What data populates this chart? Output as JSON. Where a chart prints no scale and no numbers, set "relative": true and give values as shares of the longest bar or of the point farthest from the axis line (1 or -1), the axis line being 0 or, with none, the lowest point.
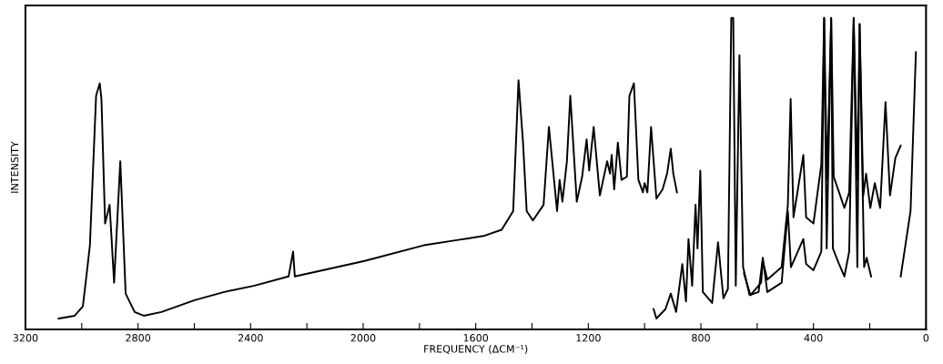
{
  "chart_data": {
    "type": "line",
    "relative": true,
    "xlabel": "FREQUENCY (ΔCM⁻¹)",
    "ylabel": "INTENSITY",
    "xlim": [
      3200,
      0
    ],
    "xticks": [
      3200,
      {
        "value": 3000,
        "label": null
      },
      2800,
      {
        "value": 2600,
        "label": null
      },
      2400,
      {
        "value": 2200,
        "label": null
      },
      2000,
      {
        "value": 1800,
        "label": null
      },
      1600,
      {
        "value": 1400,
        "label": null
      },
      1200,
      {
        "value": 1000,
        "label": null
      },
      800,
      {
        "value": 600,
        "label": null
      },
      400,
      {
        "value": 200,
        "label": null
      },
      0
    ],
    "grid": false,
    "legend": false,
    "line_style": "solid",
    "marker": "none",
    "series": [
      {
        "color": "#000000",
        "x": [
          3082,
          3025,
          2996,
          2981,
          2971,
          2949,
          2936,
          2930,
          2917,
          2901,
          2885,
          2863,
          2844,
          2812,
          2780,
          2717,
          2599,
          2494,
          2389,
          2265,
          2249,
          2243,
          2144,
          1995,
          1785,
          1572,
          1508,
          1467,
          1448,
          1432,
          1419,
          1397,
          1359,
          1340,
          1311,
          1302,
          1292,
          1276,
          1264,
          1241,
          1222,
          1206,
          1197,
          1181,
          1159,
          1133,
          1123,
          1117,
          1108,
          1095,
          1082,
          1063,
          1054,
          1038,
          1022,
          1006,
          1000,
          990,
          977,
          958,
          936,
          920,
          907,
          898,
          885
        ],
        "values": [
          0.035,
          0.044,
          0.074,
          0.19,
          0.27,
          0.75,
          0.79,
          0.74,
          0.34,
          0.4,
          0.15,
          0.54,
          0.115,
          0.056,
          0.044,
          0.056,
          0.094,
          0.12,
          0.14,
          0.17,
          0.25,
          0.17,
          0.19,
          0.22,
          0.27,
          0.3,
          0.32,
          0.38,
          0.8,
          0.6,
          0.38,
          0.35,
          0.4,
          0.65,
          0.38,
          0.48,
          0.41,
          0.54,
          0.75,
          0.41,
          0.49,
          0.61,
          0.51,
          0.65,
          0.43,
          0.54,
          0.5,
          0.56,
          0.45,
          0.6,
          0.48,
          0.49,
          0.75,
          0.79,
          0.48,
          0.44,
          0.47,
          0.44,
          0.65,
          0.42,
          0.45,
          0.5,
          0.58,
          0.5,
          0.44
        ]
      },
      {
        "color": "#000000",
        "x": [
          968,
          958,
          926,
          907,
          888,
          866,
          853,
          844,
          831,
          819,
          812,
          802,
          793,
          760,
          739,
          720,
          704,
          692,
          685,
          676,
          663,
          650,
          627,
          595,
          580,
          564,
          513,
          491,
          480,
          436,
          426,
          400,
          372,
          362,
          353,
          337,
          331,
          309,
          290,
          273,
          257,
          244,
          236,
          220,
          211,
          195
        ],
        "values": [
          0.065,
          0.035,
          0.065,
          0.115,
          0.056,
          0.21,
          0.09,
          0.29,
          0.14,
          0.4,
          0.26,
          0.51,
          0.12,
          0.085,
          0.28,
          0.1,
          0.13,
          1.0,
          1.0,
          0.14,
          0.88,
          0.2,
          0.11,
          0.12,
          0.23,
          0.12,
          0.15,
          0.38,
          0.2,
          0.29,
          0.21,
          0.19,
          0.25,
          1.0,
          0.26,
          1.0,
          0.26,
          0.21,
          0.17,
          0.25,
          1.0,
          0.2,
          0.98,
          0.2,
          0.23,
          0.17
        ]
      },
      {
        "color": "#000000",
        "x": [
          647,
          624,
          586,
          580,
          564,
          513,
          491,
          481,
          471,
          436,
          426,
          400,
          372,
          362,
          352,
          337,
          328,
          309,
          290,
          273,
          257,
          244,
          236,
          223,
          213,
          198,
          182,
          163,
          144,
          128,
          109,
          90
        ],
        "values": [
          0.18,
          0.11,
          0.15,
          0.22,
          0.16,
          0.2,
          0.4,
          0.74,
          0.36,
          0.56,
          0.36,
          0.34,
          0.53,
          1.0,
          0.48,
          1.0,
          0.49,
          0.44,
          0.39,
          0.44,
          1.0,
          0.48,
          0.98,
          0.43,
          0.5,
          0.39,
          0.47,
          0.39,
          0.73,
          0.43,
          0.55,
          0.59
        ]
      },
      {
        "color": "#000000",
        "x": [
          90,
          55,
          36
        ],
        "values": [
          0.17,
          0.38,
          0.89
        ]
      }
    ]
  }
}
